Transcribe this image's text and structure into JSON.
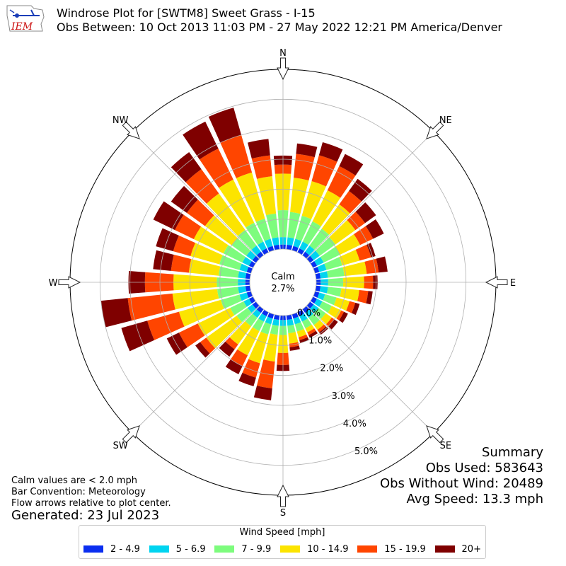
{
  "logo": {
    "text": "IEM"
  },
  "header": {
    "title": "Windrose Plot for [SWTM8] Sweet Grass - I-15",
    "subtitle": "Obs Between: 10 Oct 2013 11:03 PM - 27 May 2022 12:21 PM America/Denver"
  },
  "notes": {
    "calm_def": "Calm values are < 2.0 mph",
    "convention": "Bar Convention: Meteorology",
    "arrows": "Flow arrows relative to plot center.",
    "generated": "Generated: 23 Jul 2023"
  },
  "summary": {
    "title": "Summary",
    "obs_used": "Obs Used: 583643",
    "obs_without_wind": "Obs Without Wind: 20489",
    "avg_speed": "Avg Speed: 13.3 mph"
  },
  "legend": {
    "title": "Wind Speed [mph]",
    "items": [
      {
        "label": "2 - 4.9",
        "color": "#0a2ef0"
      },
      {
        "label": "5 - 6.9",
        "color": "#00d4f0"
      },
      {
        "label": "7 - 9.9",
        "color": "#7dfc7d"
      },
      {
        "label": "10 - 14.9",
        "color": "#fce400"
      },
      {
        "label": "15 - 19.9",
        "color": "#ff4500"
      },
      {
        "label": "20+",
        "color": "#7f0000"
      }
    ]
  },
  "chart_data": {
    "type": "windrose",
    "calm_label": "Calm",
    "calm_percent": "2.7%",
    "directions": [
      {
        "label": "N",
        "angle": 0
      },
      {
        "label": "NE",
        "angle": 45
      },
      {
        "label": "E",
        "angle": 90
      },
      {
        "label": "SE",
        "angle": 135
      },
      {
        "label": "S",
        "angle": 180
      },
      {
        "label": "SW",
        "angle": 225
      },
      {
        "label": "W",
        "angle": 270
      },
      {
        "label": "NW",
        "angle": 315
      }
    ],
    "radial_ticks": [
      0,
      1,
      2,
      3,
      4,
      5
    ],
    "radial_tick_labels": [
      "0.0%",
      "1.0%",
      "2.0%",
      "3.0%",
      "4.0%",
      "5.0%"
    ],
    "rmax": 6.0,
    "sector_width_deg": 10,
    "speed_bins": [
      "2 - 4.9",
      "5 - 6.9",
      "7 - 9.9",
      "10 - 14.9",
      "15 - 19.9",
      "20+"
    ],
    "sectors": [
      {
        "dir": 0,
        "values": [
          0.15,
          0.25,
          0.9,
          1.22,
          0.3,
          0.3
        ]
      },
      {
        "dir": 10,
        "values": [
          0.15,
          0.25,
          0.85,
          1.15,
          0.8,
          0.35
        ]
      },
      {
        "dir": 20,
        "values": [
          0.15,
          0.25,
          0.8,
          1.2,
          0.9,
          0.45
        ]
      },
      {
        "dir": 30,
        "values": [
          0.15,
          0.25,
          0.75,
          1.15,
          0.9,
          0.45
        ]
      },
      {
        "dir": 40,
        "values": [
          0.15,
          0.25,
          0.7,
          1.0,
          0.55,
          0.5
        ]
      },
      {
        "dir": 50,
        "values": [
          0.15,
          0.25,
          0.65,
          0.82,
          0.4,
          0.45
        ]
      },
      {
        "dir": 60,
        "values": [
          0.15,
          0.25,
          0.6,
          0.75,
          0.48,
          0.4
        ]
      },
      {
        "dir": 70,
        "values": [
          0.15,
          0.25,
          0.55,
          0.6,
          0.4,
          0.15
        ]
      },
      {
        "dir": 80,
        "values": [
          0.15,
          0.25,
          0.55,
          0.75,
          0.4,
          0.3
        ]
      },
      {
        "dir": 90,
        "values": [
          0.15,
          0.25,
          0.5,
          0.7,
          0.3,
          0.15
        ]
      },
      {
        "dir": 100,
        "values": [
          0.15,
          0.25,
          0.45,
          0.6,
          0.3,
          0.15
        ]
      },
      {
        "dir": 110,
        "values": [
          0.15,
          0.2,
          0.4,
          0.45,
          0.2,
          0.15
        ]
      },
      {
        "dir": 120,
        "values": [
          0.15,
          0.2,
          0.35,
          0.35,
          0.1,
          0.15
        ]
      },
      {
        "dir": 130,
        "values": [
          0.15,
          0.2,
          0.3,
          0.25,
          0.1,
          0.15
        ]
      },
      {
        "dir": 140,
        "values": [
          0.15,
          0.2,
          0.3,
          0.2,
          0.1,
          0.1
        ]
      },
      {
        "dir": 150,
        "values": [
          0.15,
          0.2,
          0.25,
          0.15,
          0.1,
          0.1
        ]
      },
      {
        "dir": 160,
        "values": [
          0.15,
          0.2,
          0.25,
          0.2,
          0.1,
          0.1
        ]
      },
      {
        "dir": 170,
        "values": [
          0.15,
          0.2,
          0.25,
          0.35,
          0.12,
          0.12
        ]
      },
      {
        "dir": 180,
        "values": [
          0.15,
          0.2,
          0.3,
          0.6,
          0.4,
          0.2
        ]
      },
      {
        "dir": 190,
        "values": [
          0.15,
          0.2,
          0.3,
          0.9,
          0.9,
          0.4
        ]
      },
      {
        "dir": 200,
        "values": [
          0.15,
          0.2,
          0.35,
          1.0,
          0.5,
          0.3
        ]
      },
      {
        "dir": 210,
        "values": [
          0.15,
          0.2,
          0.35,
          0.9,
          0.4,
          0.3
        ]
      },
      {
        "dir": 220,
        "values": [
          0.15,
          0.2,
          0.35,
          0.75,
          0.2,
          0.3
        ]
      },
      {
        "dir": 230,
        "values": [
          0.15,
          0.2,
          0.45,
          1.25,
          0.25,
          0.2
        ]
      },
      {
        "dir": 240,
        "values": [
          0.15,
          0.2,
          0.5,
          1.2,
          0.7,
          0.45
        ]
      },
      {
        "dir": 250,
        "values": [
          0.15,
          0.25,
          0.65,
          1.45,
          1.1,
          0.9
        ]
      },
      {
        "dir": 260,
        "values": [
          0.15,
          0.25,
          0.7,
          1.5,
          1.5,
          0.9
        ]
      },
      {
        "dir": 270,
        "values": [
          0.15,
          0.25,
          0.7,
          1.45,
          0.95,
          0.55
        ]
      },
      {
        "dir": 280,
        "values": [
          0.15,
          0.25,
          0.65,
          1.0,
          0.6,
          0.6
        ]
      },
      {
        "dir": 290,
        "values": [
          0.15,
          0.25,
          0.7,
          1.0,
          0.6,
          0.6
        ]
      },
      {
        "dir": 300,
        "values": [
          0.15,
          0.25,
          0.7,
          1.1,
          0.7,
          0.8
        ]
      },
      {
        "dir": 310,
        "values": [
          0.15,
          0.25,
          0.6,
          1.1,
          0.75,
          0.65
        ]
      },
      {
        "dir": 320,
        "values": [
          0.15,
          0.25,
          0.65,
          1.5,
          1.0,
          0.7
        ]
      },
      {
        "dir": 330,
        "values": [
          0.15,
          0.25,
          0.7,
          1.6,
          1.15,
          1.0
        ]
      },
      {
        "dir": 340,
        "values": [
          0.15,
          0.25,
          0.7,
          1.6,
          1.3,
          0.95
        ]
      },
      {
        "dir": 350,
        "values": [
          0.15,
          0.25,
          0.8,
          1.25,
          0.7,
          0.55
        ]
      }
    ]
  }
}
